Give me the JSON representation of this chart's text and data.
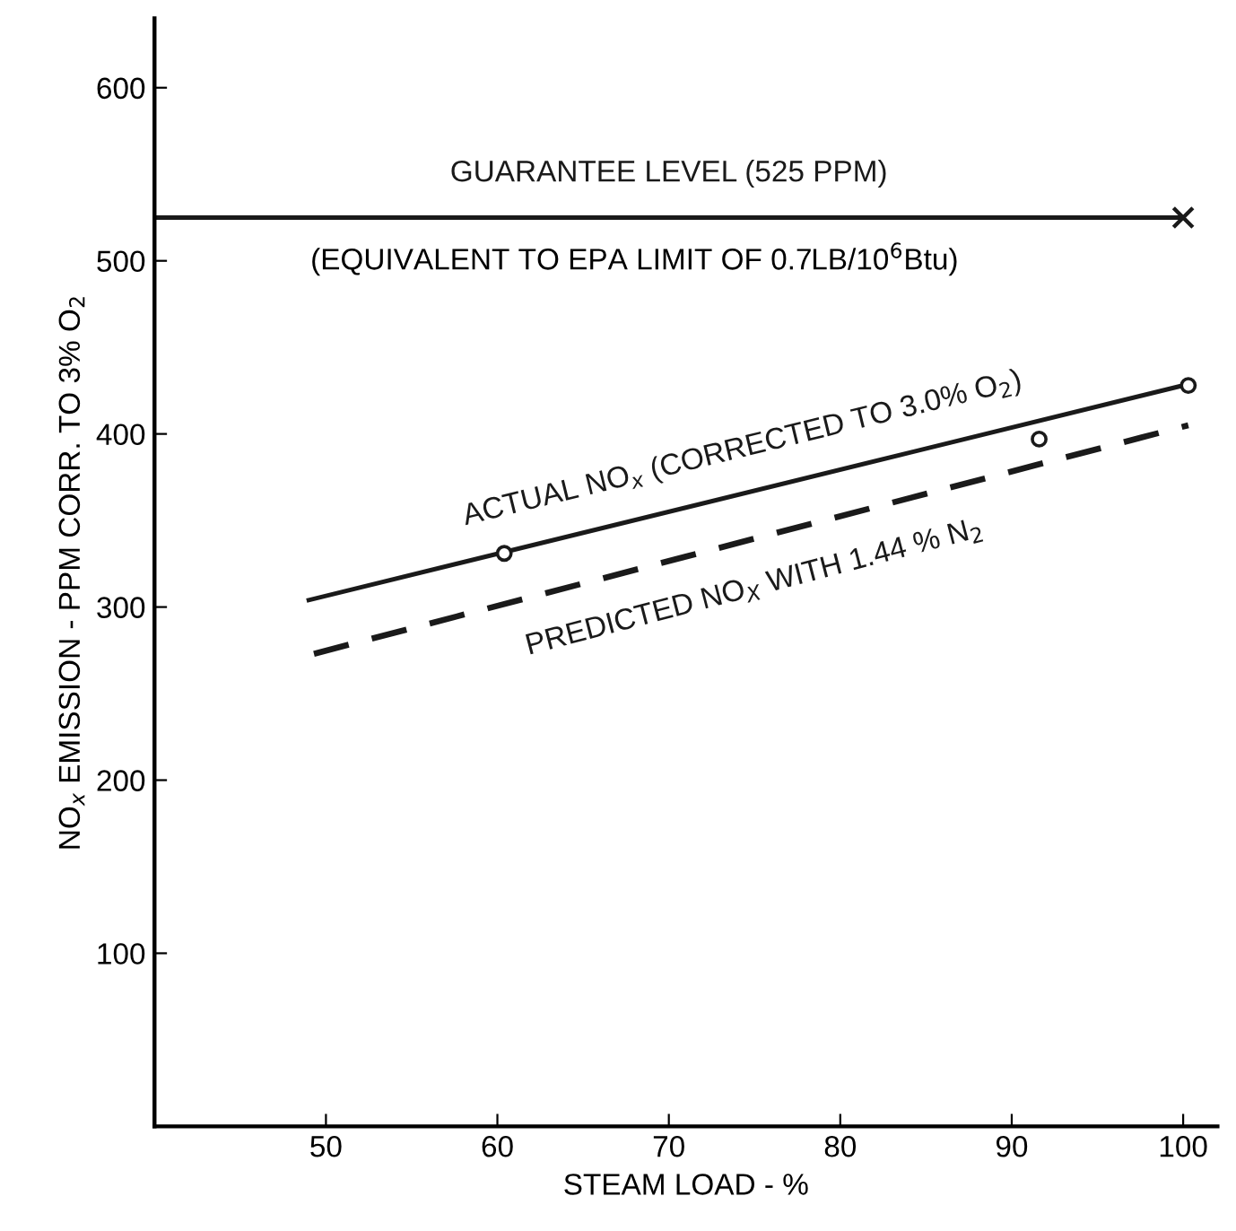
{
  "chart_data": {
    "type": "line",
    "xlabel": "STEAM LOAD - %",
    "ylabel": "NO$_{x}$ EMISSION - PPM CORR. TO 3% O$_{2}$",
    "xlim": [
      40,
      102
    ],
    "ylim": [
      0,
      640
    ],
    "xticks": [
      50,
      60,
      70,
      80,
      90,
      100
    ],
    "yticks": [
      100,
      200,
      300,
      400,
      500,
      600
    ],
    "grid": false,
    "legend": false,
    "series": [
      {
        "name": "GUARANTEE LEVEL (525 PPM)",
        "line_style": "solid",
        "marker": "none",
        "color": "#1a1a1a",
        "x": [
          40,
          100
        ],
        "values": [
          525,
          525
        ]
      },
      {
        "type": "scatter",
        "marker": "cross",
        "color": "#1a1a1a",
        "x": [
          100
        ],
        "values": [
          525
        ]
      },
      {
        "name": "ACTUAL NO$_{x}$ (CORRECTED TO 3.0% O$_{2}$)",
        "line_style": "solid",
        "marker": "none",
        "color": "#1a1a1a",
        "x": [
          49,
          100
        ],
        "values": [
          304,
          428
        ]
      },
      {
        "type": "scatter",
        "marker": "circle",
        "color": "#1a1a1a",
        "x": [
          60.4,
          91.6,
          100.3
        ],
        "values": [
          331,
          397,
          428
        ]
      },
      {
        "name": "PREDICTED NO$_{X}$ WITH 1.44 % N$_{2}$",
        "line_style": "dashed",
        "marker": "none",
        "color": "#1a1a1a",
        "x": [
          49.3,
          100.3
        ],
        "values": [
          273,
          405
        ]
      }
    ],
    "annotations": [
      {
        "text": "(EQUIVALENT TO EPA LIMIT OF 0.7LB/10$^{6}$Btu)",
        "x": 68,
        "y": 525
      }
    ]
  }
}
